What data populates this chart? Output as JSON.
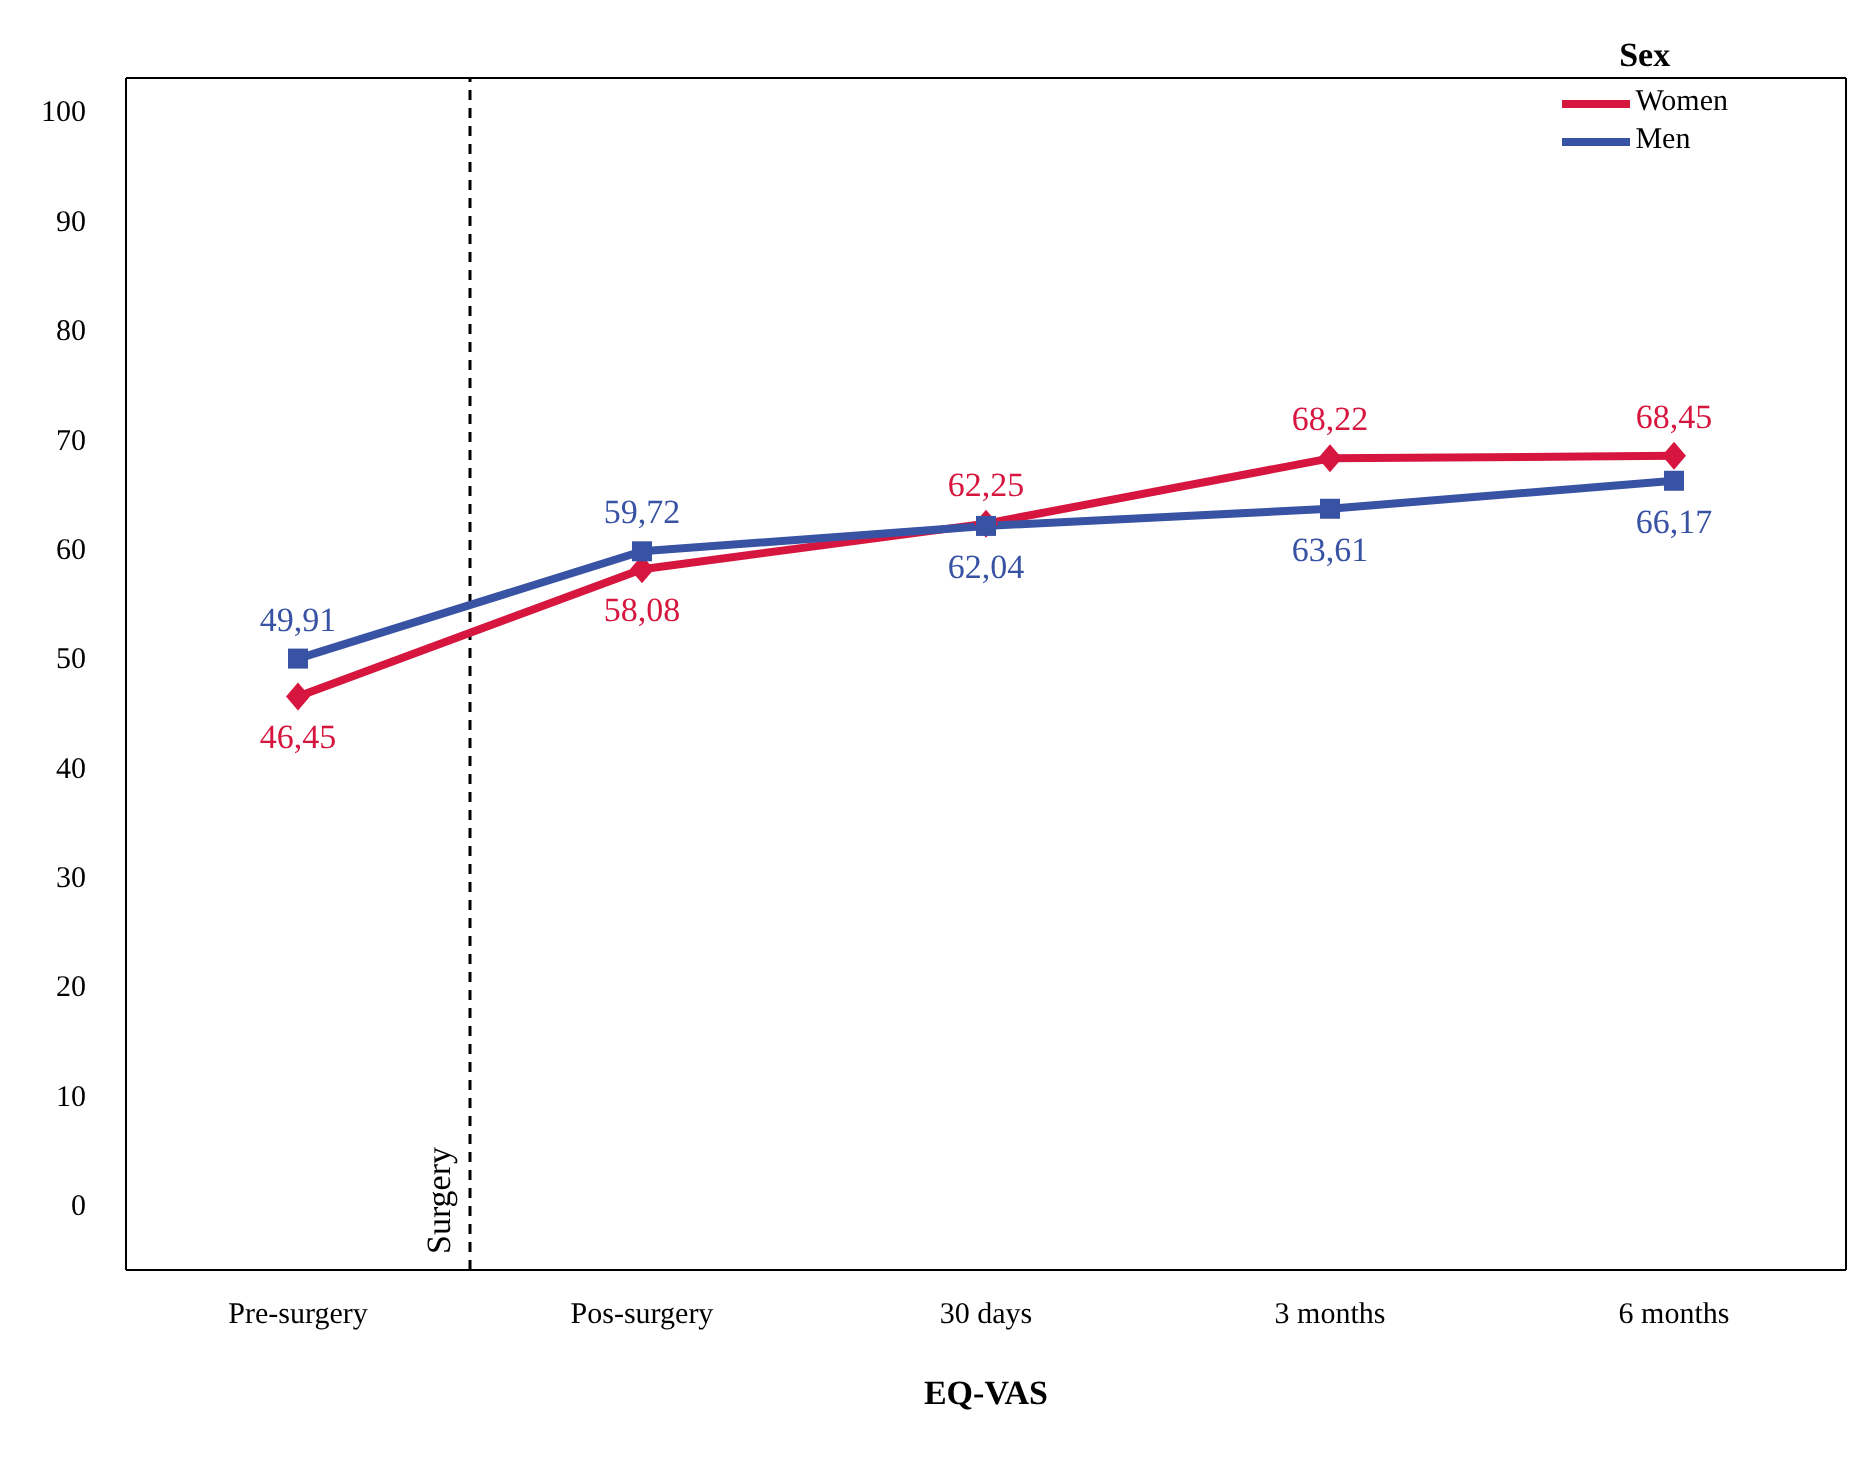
{
  "chart_data": {
    "type": "line",
    "xlabel": "EQ-VAS",
    "legend_title": "Sex",
    "legend": "top right",
    "grid": false,
    "line_style": "solid",
    "categories": [
      "Pre-surgery",
      "Pos-surgery",
      "30 days",
      "3 months",
      "6 months"
    ],
    "ylim": [
      -6,
      103
    ],
    "yticks": [
      0,
      10,
      20,
      30,
      40,
      50,
      60,
      70,
      80,
      90,
      100
    ],
    "series": [
      {
        "name": "Women",
        "color": "#d6163f",
        "marker": "diamond",
        "values": [
          46.45,
          58.08,
          62.25,
          68.22,
          68.45
        ],
        "value_labels": [
          "46,45",
          "58,08",
          "62,25",
          "68,22",
          "68,45"
        ]
      },
      {
        "name": "Men",
        "color": "#3953a4",
        "marker": "square",
        "values": [
          49.91,
          59.72,
          62.04,
          63.61,
          66.17
        ],
        "value_labels": [
          "49,91",
          "59,72",
          "62,04",
          "63,61",
          "66,17"
        ]
      }
    ],
    "annotations": [
      "Surgery"
    ]
  }
}
